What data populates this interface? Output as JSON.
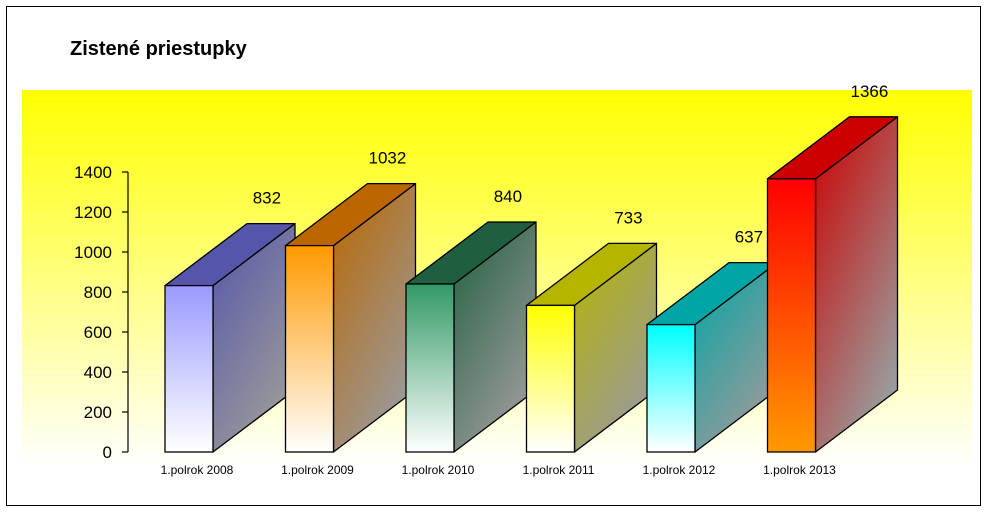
{
  "chart_data": {
    "type": "bar",
    "title": "Zistené priestupky",
    "categories": [
      "1.polrok 2008",
      "1.polrok 2009",
      "1.polrok 2010",
      "1.polrok 2011",
      "1.polrok 2012",
      "1.polrok 2013"
    ],
    "values": [
      832,
      1032,
      840,
      733,
      637,
      1366
    ],
    "xlabel": "",
    "ylabel": "",
    "ylim": [
      0,
      1400
    ],
    "yticks": [
      0,
      200,
      400,
      600,
      800,
      1000,
      1200,
      1400
    ],
    "grid": false,
    "legend": "none",
    "three_d": true,
    "colors": {
      "plot_bg_top": "#ffff00",
      "plot_bg_bottom": "#ffffff",
      "bars": [
        {
          "top": "#9a9aff",
          "bottom": "#ffffff",
          "side_dark": "#5555aa"
        },
        {
          "top": "#ff9900",
          "bottom": "#ffffff",
          "side_dark": "#bb6600"
        },
        {
          "top": "#339966",
          "bottom": "#ffffff",
          "side_dark": "#1f5f3f"
        },
        {
          "top": "#ffff00",
          "bottom": "#ffffff",
          "side_dark": "#b5b500"
        },
        {
          "top": "#00ffff",
          "bottom": "#ffffff",
          "side_dark": "#00a5a5"
        },
        {
          "top": "#ff0000",
          "bottom": "#ff9900",
          "side_dark": "#cc0000"
        }
      ]
    }
  }
}
